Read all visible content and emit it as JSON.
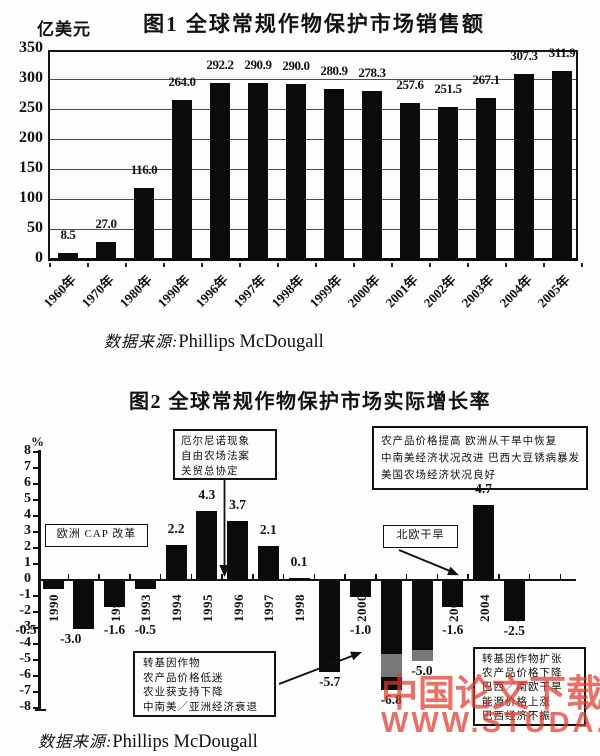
{
  "page": {
    "chart1": {
      "unit_label": "亿美元",
      "title": "图1 全球常规作物保护市场销售额",
      "source_prefix": "数据来源:",
      "source_name": "Phillips McDougall"
    },
    "chart2": {
      "title": "图2 全球常规作物保护市场实际增长率",
      "unit_label": "%",
      "source_prefix": "数据来源:",
      "source_name": "Phillips McDougall",
      "annotations": {
        "cap_box": "欧洲 CAP 改革",
        "elnino_box": [
          "厄尔尼诺现象",
          "自由农场法案",
          "关贸总协定"
        ],
        "recovery_box": [
          "农产品价格提高  欧洲从干旱中恢复",
          "中南美经济状况改进  巴西大豆锈病暴发",
          "美国农场经济状况良好"
        ],
        "north_europe_box": "北欧干旱",
        "downturn_box": [
          "转基因作物",
          "农产品价格低迷",
          "农业获支持下降",
          "中南美／亚洲经济衰退"
        ],
        "decline_box": [
          "转基因作物扩张",
          "农产品价格下降",
          "巴西／南欧干旱",
          "能源价格上涨",
          "巴西经济不振"
        ]
      }
    },
    "watermark": {
      "line1": "中国论文下载",
      "line2": "WWW.STUDA.",
      "color": "#e03a30"
    }
  },
  "chart_data": [
    {
      "type": "bar",
      "title": "图1 全球常规作物保护市场销售额",
      "xlabel": "",
      "ylabel": "亿美元",
      "ylim": [
        0,
        350
      ],
      "ytick_step": 50,
      "grid": true,
      "legend": "none",
      "bar_color": "#0b0b0b",
      "categories": [
        "1960年",
        "1970年",
        "1980年",
        "1990年",
        "1996年",
        "1997年",
        "1998年",
        "1999年",
        "2000年",
        "2001年",
        "2002年",
        "2003年",
        "2004年",
        "2005年"
      ],
      "values": [
        8.5,
        27.0,
        116.0,
        264.0,
        292.2,
        290.9,
        290.0,
        280.9,
        278.3,
        257.6,
        251.5,
        267.1,
        307.3,
        311.9
      ],
      "source": "数据来源:Phillips McDougall"
    },
    {
      "type": "bar",
      "title": "图2 全球常规作物保护市场实际增长率",
      "xlabel": "",
      "ylabel": "%",
      "ylim": [
        -8,
        8
      ],
      "ytick_step": 1,
      "grid": false,
      "legend": "none",
      "bar_color": "#0b0b0b",
      "categories": [
        "1990",
        "1991",
        "1992",
        "1993",
        "1994",
        "1995",
        "1996",
        "1997",
        "1998",
        "1999",
        "2000",
        "2001",
        "2002",
        "2003",
        "2004",
        "2005"
      ],
      "values": [
        -0.5,
        -3.0,
        -1.6,
        -0.5,
        2.2,
        4.3,
        3.7,
        2.1,
        0.1,
        -5.7,
        -1.0,
        -6.8,
        -5.0,
        -1.6,
        4.7,
        -2.5
      ],
      "source": "数据来源:Phillips McDougall"
    }
  ]
}
